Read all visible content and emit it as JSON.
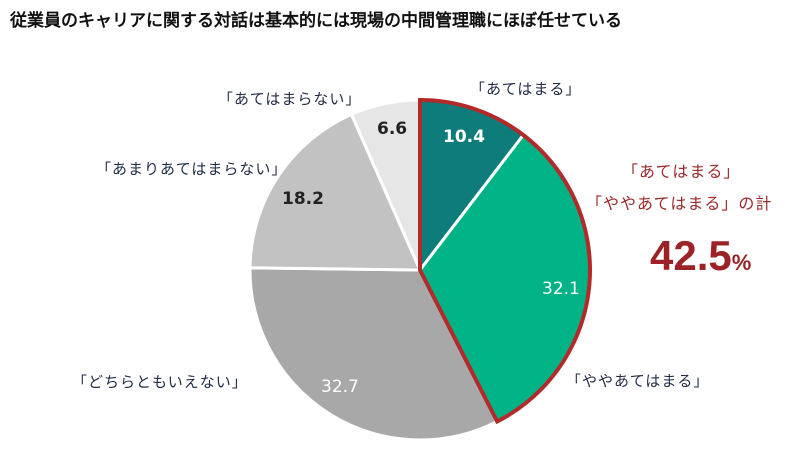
{
  "title": "従業員のキャリアに関する対話は基本的には現場の中間管理職にほぼ任せている",
  "chart_data": {
    "type": "pie",
    "title": "従業員のキャリアに関する対話は基本的には現場の中間管理職にほぼ任せている",
    "start_angle": "12 o'clock, clockwise",
    "slices": [
      {
        "label": "「あてはまる」",
        "value": 10.4,
        "color": "#0e7c7b"
      },
      {
        "label": "「ややあてはまる」",
        "value": 32.1,
        "color": "#00b386"
      },
      {
        "label": "「どちらともいえない」",
        "value": 32.7,
        "color": "#a8a8a8"
      },
      {
        "label": "「あまりあてはまらない」",
        "value": 18.2,
        "color": "#c2c2c2"
      },
      {
        "label": "「あてはまらない」",
        "value": 6.6,
        "color": "#e6e6e6"
      }
    ],
    "highlight": {
      "slices": [
        "「あてはまる」",
        "「ややあてはまる」"
      ],
      "outline_color": "#b22a2a",
      "annotation_line1": "「あてはまる」",
      "annotation_line2": "「ややあてはまる」の計",
      "total": "42.5",
      "unit": "%"
    }
  },
  "labels": {
    "atehamaru": "「あてはまる」",
    "yaya": "「ややあてはまる」",
    "dochira": "「どちらともいえない」",
    "amari": "「あまりあてはまらない」",
    "atehamaranai": "「あてはまらない」"
  },
  "values": {
    "atehamaru": "10.4",
    "yaya": "32.1",
    "dochira": "32.7",
    "amari": "18.2",
    "atehamaranai": "6.6"
  }
}
